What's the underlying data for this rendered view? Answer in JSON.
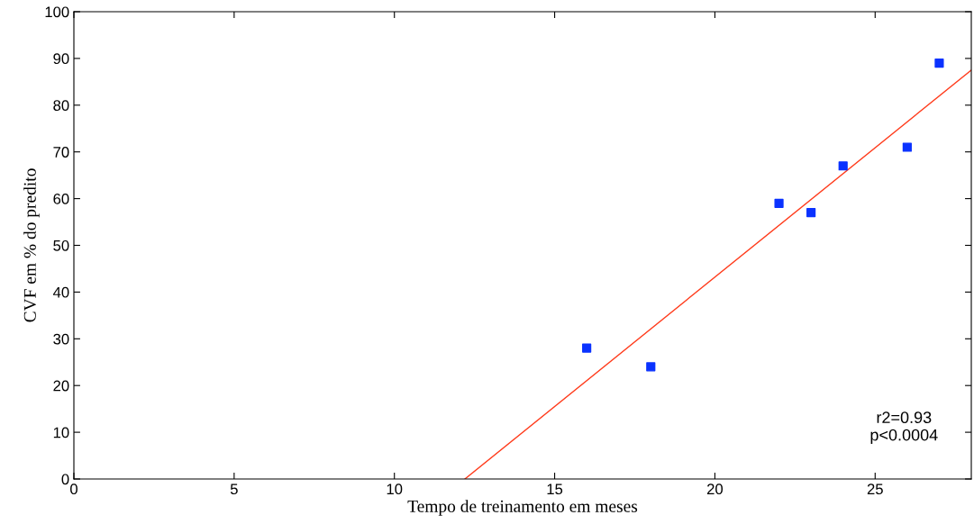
{
  "chart_data": {
    "type": "scatter",
    "xlabel": "Tempo de treinamento em meses",
    "ylabel": "CVF em % do predito",
    "xlim": [
      0,
      28
    ],
    "ylim": [
      0,
      100
    ],
    "xticks": [
      0,
      5,
      10,
      15,
      20,
      25
    ],
    "yticks": [
      0,
      10,
      20,
      30,
      40,
      50,
      60,
      70,
      80,
      90,
      100
    ],
    "grid": false,
    "marker": "square",
    "series": [
      {
        "color": "#0a32ff",
        "x": [
          16,
          18,
          22,
          23,
          24,
          26,
          27
        ],
        "values": [
          28,
          24,
          59,
          57,
          67,
          71,
          89
        ]
      },
      {
        "type": "line",
        "color": "#ff3a1a",
        "marker": "none",
        "x": [
          12.2,
          28
        ],
        "values": [
          0,
          87.5
        ]
      }
    ],
    "annotations": [
      {
        "text": "r2=0.93\np<0.0004"
      }
    ]
  }
}
